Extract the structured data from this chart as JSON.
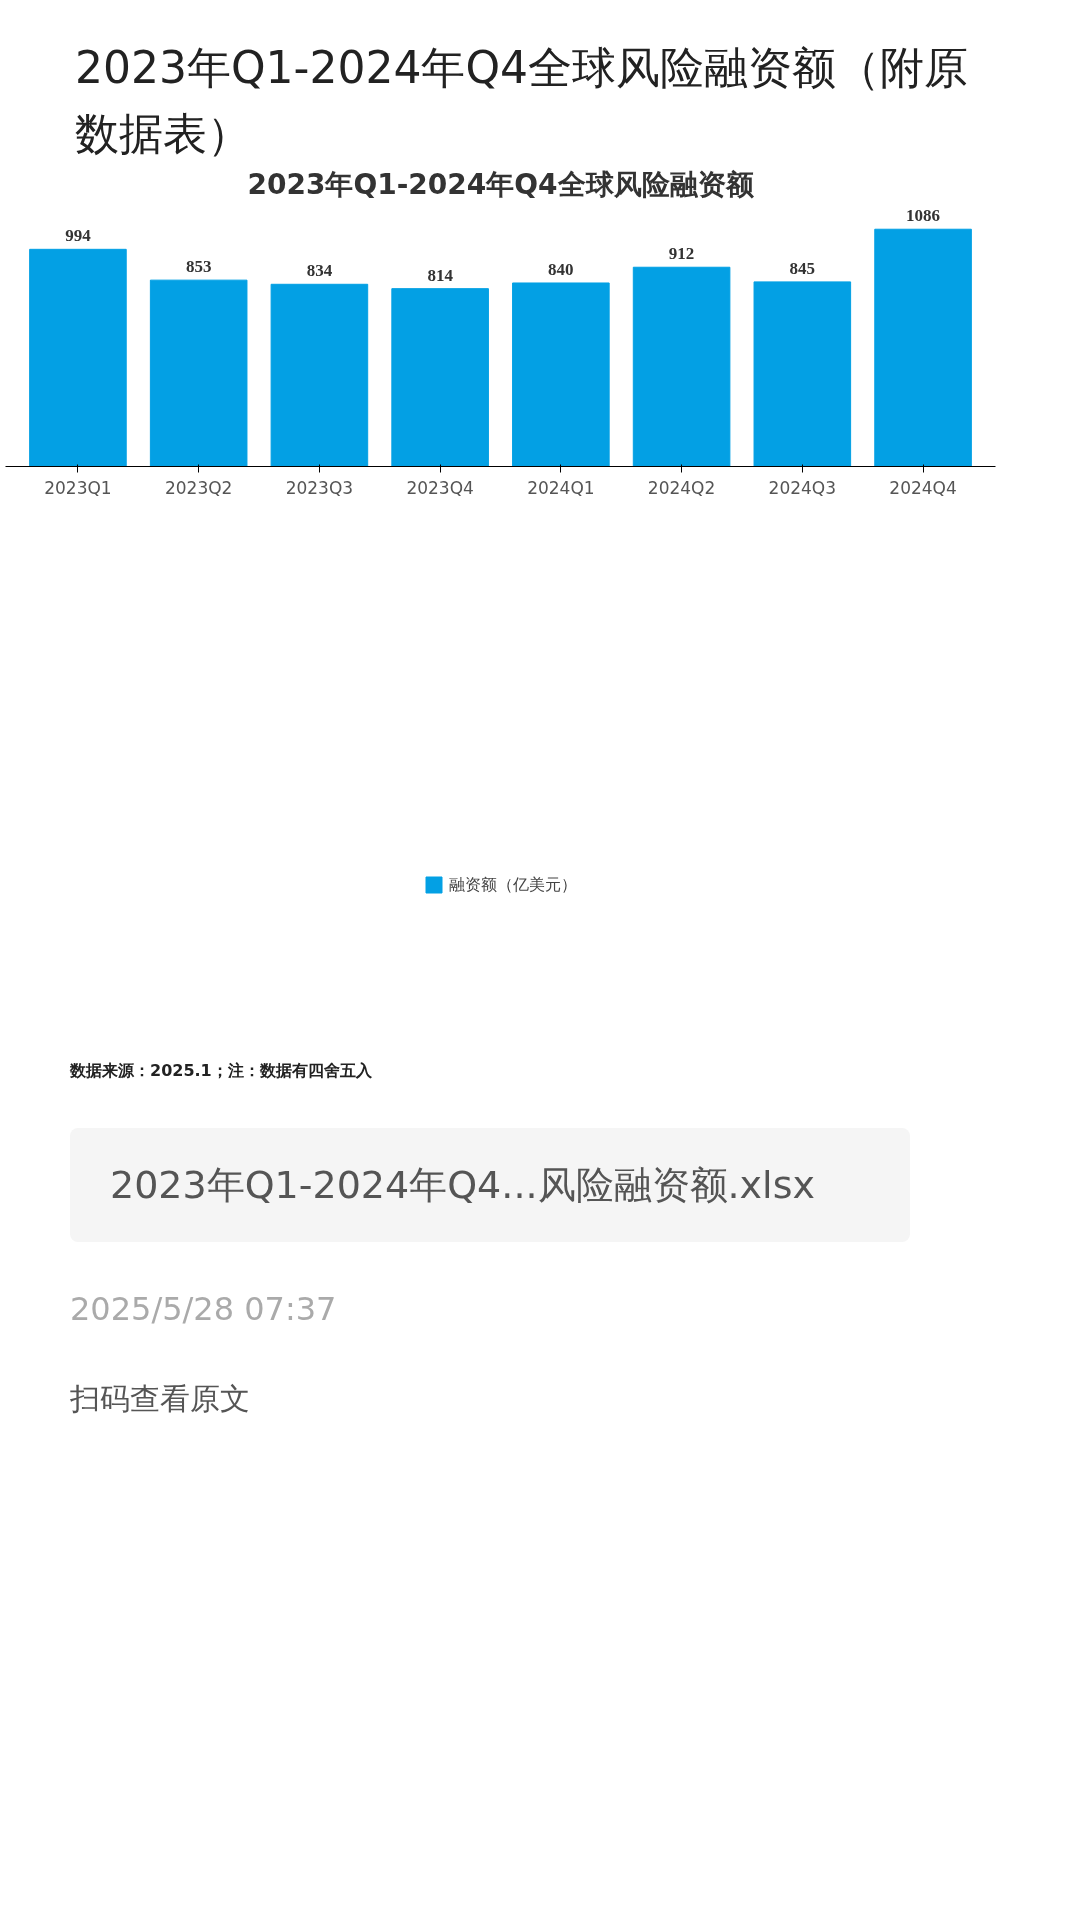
{
  "chart_data": {
    "type": "bar",
    "title": "2023年Q1-2024年Q4全球风险融资额",
    "subtitle": "2023年Q1-2024年Q4全球风险融资额（附原数据表）",
    "categories": [
      "2023Q1",
      "2023Q2",
      "2023Q3",
      "2023Q4",
      "2024Q1",
      "2024Q2",
      "2024Q3",
      "2024Q4"
    ],
    "series": [
      {
        "name": "融资额（亿美元）",
        "color": "#03a0e4",
        "values": [
          994,
          853,
          834,
          814,
          840,
          912,
          845,
          1086
        ]
      }
    ],
    "data_labels": true,
    "grid": false,
    "legend": "bottom",
    "tick_labels": "x",
    "annotations": [
      "数据来源：2025.1；注：数据有四舍五入",
      "2023年Q1-2024年Q4...风险融资额.xlsx",
      "2025/5/28 07:37",
      "扫码查看原文"
    ]
  }
}
